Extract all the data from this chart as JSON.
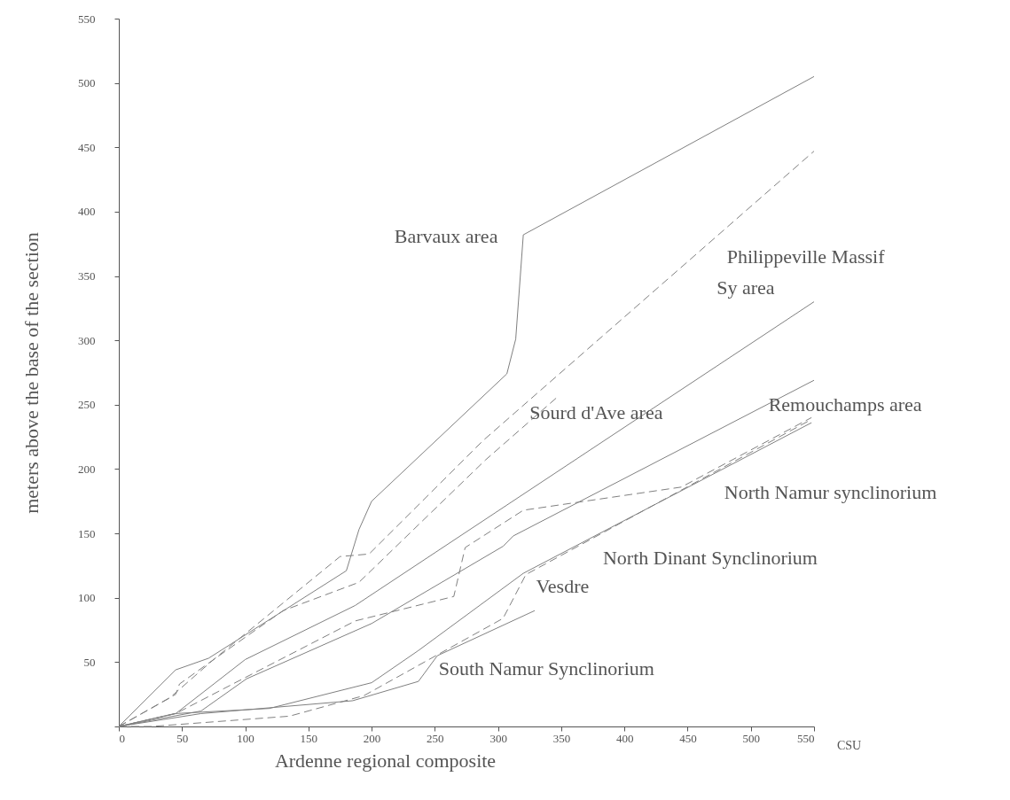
{
  "chart_data": {
    "type": "line",
    "xlabel": "Ardenne regional composite",
    "ylabel": "meters above the base of the section",
    "annotations": [
      "CSU"
    ],
    "xlim": [
      0,
      550
    ],
    "xticks": [
      0,
      50,
      100,
      150,
      200,
      250,
      300,
      350,
      400,
      450,
      500,
      550
    ],
    "ylim": [
      0,
      550
    ],
    "yticks": [
      {
        "value": 0,
        "label": null
      },
      50,
      100,
      150,
      200,
      250,
      300,
      350,
      400,
      450,
      500,
      550
    ],
    "grid": false,
    "legend": false,
    "marker": "none",
    "series": [
      {
        "name": "Barvaux area",
        "color": "#808080",
        "line_style": "solid",
        "x": [
          0,
          45,
          71,
          180,
          190,
          200,
          307,
          314,
          320,
          550
        ],
        "values": [
          0,
          44,
          53,
          121,
          153,
          175,
          274,
          301,
          382,
          505
        ]
      },
      {
        "name": "Philippeville Massif",
        "color": "#808080",
        "line_style": "dashed",
        "x": [
          0,
          40,
          75,
          175,
          198,
          288,
          550
        ],
        "values": [
          0,
          22,
          52,
          132,
          134,
          222,
          447
        ]
      },
      {
        "name": "Sy area",
        "color": "#808080",
        "line_style": "solid",
        "x": [
          0,
          45,
          100,
          187,
          550
        ],
        "values": [
          0,
          10,
          52,
          94,
          330
        ]
      },
      {
        "name": "Sourd d'Ave area",
        "color": "#808080",
        "line_style": "dashed",
        "x": [
          0,
          45,
          48,
          75,
          130,
          190,
          290,
          347
        ],
        "values": [
          0,
          25,
          33,
          52,
          90,
          112,
          207,
          256
        ]
      },
      {
        "name": "Remouchamps area",
        "color": "#808080",
        "line_style": "solid",
        "x": [
          0,
          65,
          101,
          200,
          304,
          312,
          550
        ],
        "values": [
          0,
          12,
          37,
          80,
          140,
          148,
          269
        ]
      },
      {
        "name": "North Namur synclinorium",
        "color": "#808080",
        "line_style": "dashed",
        "x": [
          0,
          45,
          100,
          187,
          265,
          274,
          320,
          445,
          548
        ],
        "values": [
          0,
          10,
          38,
          82,
          101,
          139,
          168,
          186,
          240
        ]
      },
      {
        "name": "North Dinant Synclinorium",
        "color": "#808080",
        "line_style": "solid",
        "x": [
          0,
          44,
          119,
          200,
          237,
          320,
          548
        ],
        "values": [
          0,
          10,
          14,
          34,
          59,
          119,
          236
        ]
      },
      {
        "name": "South Namur Synclinorium",
        "color": "#808080",
        "line_style": "solid",
        "x": [
          0,
          65,
          185,
          237,
          252,
          329
        ],
        "values": [
          0,
          10,
          20,
          35,
          55,
          90
        ]
      },
      {
        "name": "Vesdre",
        "color": "#808080",
        "line_style": "dashed",
        "x": [
          0,
          26,
          135,
          194,
          304,
          322,
          545
        ],
        "values": [
          0,
          0,
          8,
          24,
          84,
          118,
          237
        ]
      }
    ]
  }
}
